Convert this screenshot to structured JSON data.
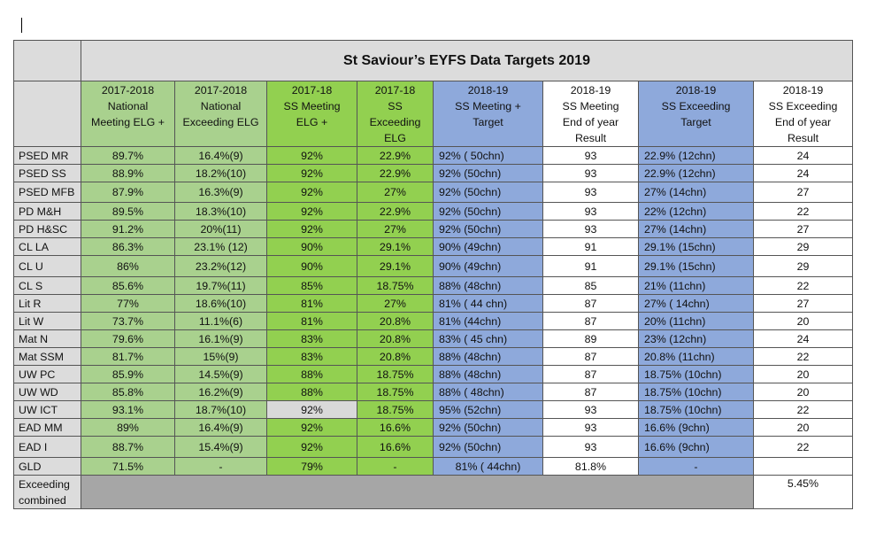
{
  "title": "St Saviour’s EYFS Data Targets 2019",
  "headers": [
    [
      "2017-2018",
      "National",
      "Meeting ELG +"
    ],
    [
      "2017-2018",
      "National",
      "Exceeding ELG"
    ],
    [
      "2017-18",
      "SS Meeting",
      "ELG  +"
    ],
    [
      "2017-18",
      "SS",
      "Exceeding",
      "ELG"
    ],
    [
      "2018-19",
      "SS Meeting +",
      "Target"
    ],
    [
      "2018-19",
      "SS Meeting",
      "End of year",
      "Result"
    ],
    [
      "2018-19",
      "SS Exceeding",
      "Target"
    ],
    [
      "2018-19",
      "SS Exceeding",
      "End of year",
      "Result"
    ]
  ],
  "rows": [
    {
      "label": "PSED MR",
      "nat_meet": "89.7%",
      "nat_exc": "16.4%(9)",
      "ss_meet": "92%",
      "ss_exc": "22.9%",
      "target_meet": "92%  ( 50chn)",
      "result_meet": "93",
      "target_exc": "22.9%  (12chn)",
      "result_exc": "24"
    },
    {
      "label": "PSED SS",
      "nat_meet": "88.9%",
      "nat_exc": "18.2%(10)",
      "ss_meet": "92%",
      "ss_exc": "22.9%",
      "target_meet": "92%  (50chn)",
      "result_meet": "93",
      "target_exc": "22.9%  (12chn)",
      "result_exc": "24"
    },
    {
      "label": "PSED MFB",
      "nat_meet": "87.9%",
      "nat_exc": "16.3%(9)",
      "ss_meet": "92%",
      "ss_exc": "27%",
      "target_meet": "92%  (50chn)",
      "result_meet": "93",
      "target_exc": "27%  (14chn)",
      "result_exc": "27"
    },
    {
      "label": "PD M&H",
      "nat_meet": "89.5%",
      "nat_exc": "18.3%(10)",
      "ss_meet": "92%",
      "ss_exc": "22.9%",
      "target_meet": "92%  (50chn)",
      "result_meet": "93",
      "target_exc": "22% (12chn)",
      "result_exc": "22"
    },
    {
      "label": "PD H&SC",
      "nat_meet": "91.2%",
      "nat_exc": "20%(11)",
      "ss_meet": "92%",
      "ss_exc": "27%",
      "target_meet": "92%  (50chn)",
      "result_meet": "93",
      "target_exc": "27%  (14chn)",
      "result_exc": "27"
    },
    {
      "label": "CL LA",
      "nat_meet": "86.3%",
      "nat_exc": "23.1% (12)",
      "ss_meet": "90%",
      "ss_exc": "29.1%",
      "target_meet": "90% (49chn)",
      "result_meet": "91",
      "target_exc": "29.1%  (15chn)",
      "result_exc": "29"
    },
    {
      "label": "CL U",
      "nat_meet": "86%",
      "nat_exc": "23.2%(12)",
      "ss_meet": "90%",
      "ss_exc": "29.1%",
      "target_meet": "90% (49chn)",
      "result_meet": "91",
      "target_exc": "29.1%  (15chn)",
      "result_exc": "29"
    },
    {
      "label": "CL S",
      "nat_meet": "85.6%",
      "nat_exc": "19.7%(11)",
      "ss_meet": "85%",
      "ss_exc": "18.75%",
      "target_meet": "88% (48chn)",
      "result_meet": "85",
      "target_exc": "21%  (11chn)",
      "result_exc": "22"
    },
    {
      "label": "Lit R",
      "nat_meet": "77%",
      "nat_exc": "18.6%(10)",
      "ss_meet": "81%",
      "ss_exc": "27%",
      "target_meet": "81% ( 44 chn)",
      "result_meet": "87",
      "target_exc": "27% ( 14chn)",
      "result_exc": "27"
    },
    {
      "label": "Lit W",
      "nat_meet": "73.7%",
      "nat_exc": "11.1%(6)",
      "ss_meet": "81%",
      "ss_exc": "20.8%",
      "target_meet": "81%  (44chn)",
      "result_meet": "87",
      "target_exc": "20% (11chn)",
      "result_exc": "20"
    },
    {
      "label": "Mat N",
      "nat_meet": "79.6%",
      "nat_exc": "16.1%(9)",
      "ss_meet": "83%",
      "ss_exc": "20.8%",
      "target_meet": "83% ( 45 chn)",
      "result_meet": "89",
      "target_exc": "23%  (12chn)",
      "result_exc": "24"
    },
    {
      "label": "Mat SSM",
      "nat_meet": "81.7%",
      "nat_exc": "15%(9)",
      "ss_meet": "83%",
      "ss_exc": "20.8%",
      "target_meet": "88% (48chn)",
      "result_meet": "87",
      "target_exc": "20.8% (11chn)",
      "result_exc": "22"
    },
    {
      "label": "UW PC",
      "nat_meet": "85.9%",
      "nat_exc": "14.5%(9)",
      "ss_meet": "88%",
      "ss_exc": "18.75%",
      "target_meet": "88%  (48chn)",
      "result_meet": "87",
      "target_exc": "18.75%  (10chn)",
      "result_exc": "20"
    },
    {
      "label": "UW WD",
      "nat_meet": "85.8%",
      "nat_exc": "16.2%(9)",
      "ss_meet": "88%",
      "ss_exc": "18.75%",
      "target_meet": "88% ( 48chn)",
      "result_meet": "87",
      "target_exc": "18.75%  (10chn)",
      "result_exc": "20"
    },
    {
      "label": "UW ICT",
      "nat_meet": "93.1%",
      "nat_exc": "18.7%(10)",
      "ss_meet": "92%",
      "ss_exc": "18.75%",
      "target_meet": "95%  (52chn)",
      "result_meet": "93",
      "target_exc": "18.75%  (10chn)",
      "result_exc": "22"
    },
    {
      "label": "EAD MM",
      "nat_meet": "89%",
      "nat_exc": "16.4%(9)",
      "ss_meet": "92%",
      "ss_exc": "16.6%",
      "target_meet": "92% (50chn)",
      "result_meet": "93",
      "target_exc": "16.6% (9chn)",
      "result_exc": "20"
    },
    {
      "label": "EAD I",
      "nat_meet": "88.7%",
      "nat_exc": "15.4%(9)",
      "ss_meet": "92%",
      "ss_exc": "16.6%",
      "target_meet": "92% (50chn)",
      "result_meet": "93",
      "target_exc": "16.6% (9chn)",
      "result_exc": "22"
    },
    {
      "label": "GLD",
      "nat_meet": "71.5%",
      "nat_exc": "-",
      "ss_meet": "79%",
      "ss_exc": "-",
      "target_meet": "81% ( 44chn)",
      "result_meet": "81.8%",
      "target_exc": "-",
      "result_exc": ""
    }
  ],
  "last_row": {
    "label_1": "Exceeding",
    "label_2": "combined",
    "value": "5.45%"
  },
  "colors": {
    "nat": "#a9d18e",
    "ss": "#92d050",
    "target": "#8ea9db",
    "label": "#dcdcdc",
    "filler": "#a6a6a6",
    "highlight": "#d9d9d9"
  }
}
